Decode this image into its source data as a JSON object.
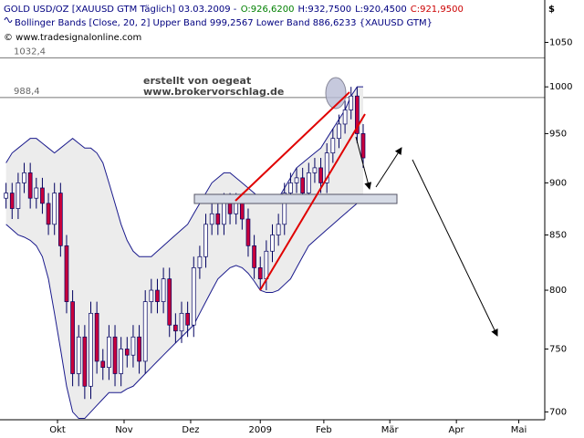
{
  "chart_data": {
    "type": "candlestick",
    "header": [
      {
        "text": "GOLD USD/OZ [XAUUSD GTM  Täglich] 03.03.2009 -",
        "color": "#000080"
      },
      {
        "text": "O:926,6200",
        "color": "#008000"
      },
      {
        "text": "H:932,7500",
        "color": "#000080"
      },
      {
        "text": "L:920,4500",
        "color": "#000080"
      },
      {
        "text": "C:921,9500",
        "color": "#cc0000"
      }
    ],
    "indicator_label": "Bollinger Bands [Close, 20, 2] Upper Band 999,2567 Lower Band 886,6233 {XAUUSD GTM}",
    "copyright": "© www.tradesignalonline.com",
    "annotations": [
      "erstellt von oegeat",
      "www.brokervorschlag.de"
    ],
    "currency": "$",
    "ylim": [
      694,
      1100
    ],
    "log_scale": true,
    "yticks": [
      700,
      750,
      800,
      850,
      900,
      950,
      1000,
      1050
    ],
    "xlim": [
      -1,
      89
    ],
    "xticks": [
      {
        "value": 8.5,
        "label": "Okt"
      },
      {
        "value": 19.5,
        "label": "Nov"
      },
      {
        "value": 30.5,
        "label": "Dez"
      },
      {
        "value": 42,
        "label": "2009"
      },
      {
        "value": 52.5,
        "label": "Feb"
      },
      {
        "value": 63.4,
        "label": "Mär"
      },
      {
        "value": 74.4,
        "label": "Apr"
      },
      {
        "value": 84.7,
        "label": "Mai"
      }
    ],
    "hlines": [
      {
        "value": 1032.4,
        "label": "1032,4"
      },
      {
        "value": 988.4,
        "label": "988,4"
      }
    ],
    "up_color": "#ffffff",
    "down_color": "#c8003c",
    "wick_color": "#000060",
    "open": [
      885,
      890,
      875,
      900,
      910,
      885,
      895,
      880,
      860,
      890,
      840,
      790,
      730,
      760,
      720,
      780,
      740,
      735,
      760,
      730,
      750,
      745,
      760,
      740,
      790,
      800,
      790,
      810,
      770,
      765,
      780,
      770,
      820,
      830,
      860,
      870,
      860,
      880,
      870,
      880,
      865,
      840,
      820,
      810,
      835,
      850,
      860,
      890,
      900,
      905,
      890,
      910,
      915,
      900,
      930,
      945,
      960,
      975,
      990,
      950
    ],
    "high": [
      900,
      900,
      910,
      920,
      920,
      905,
      905,
      890,
      900,
      900,
      850,
      800,
      770,
      770,
      790,
      790,
      750,
      770,
      770,
      760,
      760,
      770,
      770,
      800,
      810,
      810,
      820,
      820,
      780,
      790,
      790,
      830,
      840,
      870,
      880,
      880,
      890,
      890,
      890,
      890,
      875,
      850,
      830,
      845,
      860,
      870,
      900,
      910,
      915,
      915,
      920,
      925,
      925,
      940,
      955,
      970,
      985,
      1000,
      1000,
      960
    ],
    "low": [
      875,
      865,
      865,
      890,
      875,
      875,
      870,
      850,
      850,
      830,
      780,
      720,
      720,
      710,
      710,
      730,
      725,
      725,
      720,
      720,
      735,
      735,
      730,
      730,
      780,
      780,
      780,
      760,
      755,
      755,
      760,
      760,
      810,
      820,
      850,
      850,
      850,
      860,
      860,
      855,
      830,
      810,
      800,
      800,
      825,
      840,
      850,
      880,
      890,
      880,
      880,
      900,
      890,
      890,
      920,
      935,
      950,
      965,
      940,
      915
    ],
    "close": [
      890,
      875,
      900,
      910,
      885,
      895,
      880,
      860,
      890,
      840,
      790,
      730,
      760,
      720,
      780,
      740,
      735,
      760,
      730,
      750,
      745,
      760,
      740,
      790,
      800,
      790,
      810,
      770,
      765,
      780,
      770,
      820,
      830,
      860,
      870,
      860,
      880,
      870,
      880,
      865,
      840,
      820,
      810,
      835,
      850,
      860,
      890,
      900,
      905,
      890,
      910,
      915,
      900,
      930,
      945,
      960,
      975,
      990,
      950,
      925
    ],
    "series": [
      {
        "color": "#1a1a8c",
        "values": [
          920,
          930,
          935,
          940,
          945,
          945,
          940,
          935,
          930,
          935,
          940,
          945,
          940,
          935,
          935,
          930,
          920,
          900,
          880,
          860,
          845,
          835,
          830,
          830,
          830,
          835,
          840,
          845,
          850,
          855,
          860,
          870,
          880,
          890,
          900,
          905,
          910,
          910,
          905,
          900,
          895,
          890,
          885,
          880,
          880,
          885,
          895,
          905,
          915,
          920,
          925,
          930,
          935,
          945,
          955,
          965,
          975,
          990,
          1000,
          1000
        ]
      },
      {
        "color": "#1a1a8c",
        "values": [
          860,
          855,
          850,
          848,
          845,
          840,
          830,
          810,
          780,
          750,
          720,
          700,
          695,
          695,
          700,
          705,
          710,
          715,
          715,
          715,
          718,
          720,
          725,
          730,
          735,
          740,
          745,
          750,
          755,
          760,
          765,
          770,
          780,
          790,
          800,
          810,
          815,
          820,
          822,
          820,
          815,
          808,
          800,
          798,
          798,
          800,
          805,
          810,
          820,
          830,
          840,
          845,
          850,
          855,
          860,
          865,
          870,
          875,
          880,
          885
        ]
      }
    ],
    "band_fill": "#ececec"
  }
}
